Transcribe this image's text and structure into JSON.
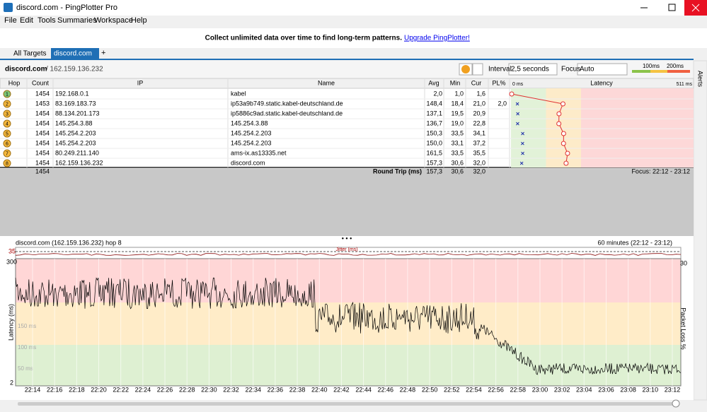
{
  "window": {
    "title": "discord.com - PingPlotter Pro"
  },
  "menu": [
    "File",
    "Edit",
    "Tools",
    "Summaries",
    "Workspace",
    "Help"
  ],
  "banner": {
    "text": "Collect unlimited data over time to find long-term patterns.",
    "link": "Upgrade PingPlotter!"
  },
  "tabs": [
    "All Targets",
    "discord.com"
  ],
  "target": {
    "name": "discord.com",
    "address": "/ 162.159.136.232",
    "interval_label": "Interval",
    "interval": "2,5 seconds",
    "focus_label": "Focus",
    "focus": "Auto",
    "alerts": "Alerts"
  },
  "legend": [
    {
      "value": 100,
      "label": "100ms"
    },
    {
      "value": 200,
      "label": "200ms"
    }
  ],
  "table": {
    "columns": [
      "Hop",
      "Count",
      "IP",
      "Name",
      "Avg",
      "Min",
      "Cur",
      "PL%",
      "Latency"
    ],
    "rows": [
      {
        "hop": "1",
        "count": "1454",
        "ip": "192.168.0.1",
        "name": "kabel",
        "avg": "2,0",
        "min": "1,0",
        "cur": "1,6"
      },
      {
        "hop": "2",
        "count": "1453",
        "ip": "83.169.183.73",
        "name": "ip53a9b749.static.kabel-deutschland.de",
        "avg": "148,4",
        "min": "18,4",
        "cur": "21,0",
        "pl": "2,0"
      },
      {
        "hop": "3",
        "count": "1454",
        "ip": "88.134.201.173",
        "name": "ip5886c9ad.static.kabel-deutschland.de",
        "avg": "137,1",
        "min": "19,5",
        "cur": "20,9"
      },
      {
        "hop": "4",
        "count": "1454",
        "ip": "145.254.3.88",
        "name": "145.254.3.88",
        "avg": "136,7",
        "min": "19,0",
        "cur": "22,8"
      },
      {
        "hop": "5",
        "count": "1454",
        "ip": "145.254.2.203",
        "name": "145.254.2.203",
        "avg": "150,3",
        "min": "33,5",
        "cur": "34,1"
      },
      {
        "hop": "6",
        "count": "1454",
        "ip": "145.254.2.203",
        "name": "145.254.2.203",
        "avg": "150,0",
        "min": "33,1",
        "cur": "37,2"
      },
      {
        "hop": "7",
        "count": "1454",
        "ip": "80.249.211.140",
        "name": "ams-ix.as13335.net",
        "avg": "161,5",
        "min": "33,5",
        "cur": "35,5"
      },
      {
        "hop": "8",
        "count": "1454",
        "ip": "162.159.136.232",
        "name": "discord.com",
        "avg": "157,3",
        "min": "30,6",
        "cur": "32,0"
      }
    ],
    "latency_scale": [
      {
        "value": 0,
        "label": "0 ms"
      },
      {
        "value": 511,
        "label": "511 ms"
      }
    ],
    "summary": {
      "count": "1454",
      "label": "Round Trip (ms)",
      "avg": "157,3",
      "min": "30,6",
      "cur": "32,0",
      "focus": "Focus: 22:12 - 23:12"
    }
  },
  "graph": {
    "title": "discord.com (162.159.136.232) hop 8",
    "range": "60 minutes (22:12 - 23:12)",
    "jitter_label": "Jitter (ms)",
    "jitter_max": "35",
    "y_top": "300",
    "y_bottom": "2",
    "y2_top": "30",
    "ylabel": "Latency (ms)",
    "y2label": "Packet Loss %",
    "zone_labels": [
      "150 ms",
      "100 ms",
      "50 ms"
    ],
    "xticks": [
      "22:14",
      "22:16",
      "22:18",
      "22:20",
      "22:22",
      "22:24",
      "22:26",
      "22:28",
      "22:30",
      "22:32",
      "22:34",
      "22:36",
      "22:38",
      "22:40",
      "22:42",
      "22:44",
      "22:46",
      "22:48",
      "22:50",
      "22:52",
      "22:54",
      "22:56",
      "22:58",
      "23:00",
      "23:02",
      "23:04",
      "23:06",
      "23:08",
      "23:10",
      "23:12"
    ]
  }
}
